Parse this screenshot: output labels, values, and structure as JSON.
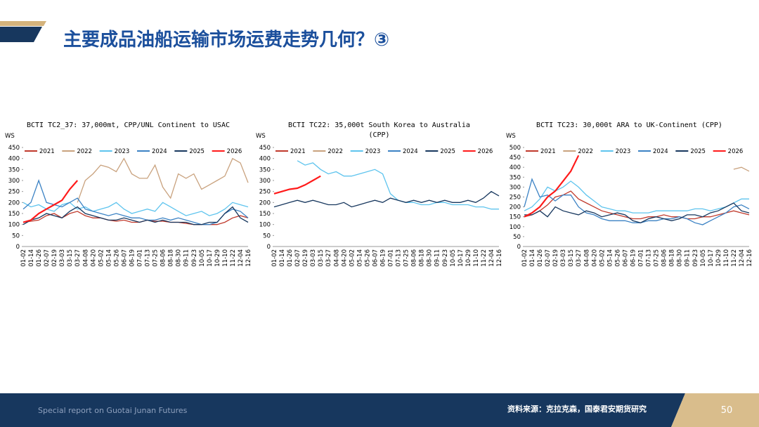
{
  "header": {
    "title": "主要成品油船运输市场运费走势几何？③"
  },
  "footer": {
    "left": "Special report on Guotai Junan Futures",
    "source": "资料来源：克拉克森，国泰君安期货研究",
    "page": 50
  },
  "chart_data": [
    {
      "type": "line",
      "title": "BCTI TC2_37: 37,000mt, CPP/UNL Continent to USAC",
      "ylabel": "WS",
      "legend": "top",
      "grid": false,
      "categories": [
        "01-02",
        "01-14",
        "01-26",
        "02-07",
        "02-19",
        "03-03",
        "03-15",
        "03-27",
        "04-08",
        "04-20",
        "05-02",
        "05-14",
        "05-26",
        "06-07",
        "06-19",
        "07-01",
        "07-13",
        "07-25",
        "08-06",
        "08-18",
        "08-30",
        "09-11",
        "09-23",
        "10-05",
        "10-17",
        "10-29",
        "11-10",
        "11-22",
        "12-04",
        "12-16"
      ],
      "ylim": [
        0,
        450
      ],
      "yticks": [
        0,
        50,
        100,
        150,
        200,
        250,
        300,
        350,
        400,
        450
      ],
      "series": [
        {
          "name": "2021",
          "color": "#c0392b",
          "values": [
            110,
            115,
            120,
            140,
            150,
            130,
            150,
            160,
            140,
            130,
            130,
            120,
            115,
            120,
            110,
            110,
            120,
            115,
            115,
            110,
            110,
            105,
            100,
            100,
            100,
            100,
            110,
            130,
            140,
            130
          ]
        },
        {
          "name": "2022",
          "color": "#c9a27e",
          "values": [
            null,
            null,
            null,
            null,
            null,
            null,
            null,
            200,
            300,
            330,
            370,
            360,
            340,
            400,
            330,
            310,
            310,
            370,
            270,
            220,
            330,
            310,
            330,
            260,
            280,
            300,
            320,
            400,
            380,
            290
          ]
        },
        {
          "name": "2023",
          "color": "#5ec4ee",
          "values": [
            200,
            180,
            190,
            170,
            160,
            190,
            200,
            170,
            180,
            160,
            170,
            180,
            200,
            170,
            150,
            160,
            170,
            160,
            200,
            180,
            160,
            140,
            150,
            160,
            140,
            150,
            170,
            200,
            190,
            180
          ]
        },
        {
          "name": "2024",
          "color": "#3b82c4",
          "values": [
            170,
            200,
            300,
            200,
            190,
            180,
            200,
            220,
            170,
            160,
            150,
            140,
            150,
            140,
            130,
            130,
            120,
            120,
            130,
            120,
            130,
            120,
            110,
            100,
            100,
            110,
            150,
            170,
            160,
            130
          ]
        },
        {
          "name": "2025",
          "color": "#17375e",
          "values": [
            100,
            120,
            130,
            150,
            140,
            130,
            160,
            180,
            150,
            140,
            130,
            120,
            120,
            130,
            120,
            110,
            120,
            110,
            120,
            110,
            110,
            110,
            100,
            100,
            110,
            110,
            150,
            180,
            130,
            110
          ]
        },
        {
          "name": "2026",
          "color": "#ff1a1a",
          "values": [
            110,
            120,
            150,
            170,
            190,
            210,
            260,
            300,
            null,
            null,
            null,
            null,
            null,
            null,
            null,
            null,
            null,
            null,
            null,
            null,
            null,
            null,
            null,
            null,
            null,
            null,
            null,
            null,
            null,
            null
          ]
        }
      ]
    },
    {
      "type": "line",
      "title": "BCTI TC22: 35,000t South Korea to Australia (CPP)",
      "ylabel": "WS",
      "legend": "top",
      "grid": false,
      "categories": [
        "01-02",
        "01-14",
        "01-26",
        "02-07",
        "02-19",
        "03-03",
        "03-15",
        "03-27",
        "04-08",
        "04-20",
        "05-02",
        "05-14",
        "05-26",
        "06-07",
        "06-19",
        "07-01",
        "07-13",
        "07-25",
        "08-06",
        "08-18",
        "08-30",
        "09-11",
        "09-23",
        "10-05",
        "10-17",
        "10-29",
        "11-10",
        "11-22",
        "12-04",
        "12-16"
      ],
      "ylim": [
        0,
        450
      ],
      "yticks": [
        0,
        50,
        100,
        150,
        200,
        250,
        300,
        350,
        400,
        450
      ],
      "series": [
        {
          "name": "2021",
          "color": "#c0392b",
          "values": [
            null,
            null,
            null,
            null,
            null,
            null,
            null,
            null,
            null,
            null,
            null,
            null,
            null,
            null,
            null,
            null,
            null,
            null,
            null,
            null,
            null,
            null,
            null,
            null,
            null,
            null,
            null,
            null,
            null,
            null
          ]
        },
        {
          "name": "2022",
          "color": "#c9a27e",
          "values": [
            null,
            null,
            null,
            null,
            null,
            null,
            null,
            null,
            null,
            null,
            null,
            null,
            null,
            null,
            null,
            null,
            null,
            null,
            null,
            null,
            null,
            null,
            null,
            null,
            null,
            null,
            null,
            null,
            null,
            null
          ]
        },
        {
          "name": "2023",
          "color": "#5ec4ee",
          "values": [
            null,
            null,
            null,
            390,
            370,
            380,
            350,
            330,
            340,
            320,
            320,
            330,
            340,
            350,
            330,
            240,
            210,
            200,
            200,
            190,
            190,
            200,
            200,
            190,
            190,
            190,
            180,
            180,
            170,
            170
          ]
        },
        {
          "name": "2024",
          "color": "#3b82c4",
          "values": [
            null,
            null,
            null,
            null,
            null,
            null,
            null,
            null,
            null,
            null,
            null,
            null,
            null,
            null,
            null,
            null,
            null,
            null,
            null,
            null,
            null,
            null,
            null,
            null,
            null,
            null,
            null,
            null,
            null,
            null
          ]
        },
        {
          "name": "2025",
          "color": "#17375e",
          "values": [
            180,
            190,
            200,
            210,
            200,
            210,
            200,
            190,
            190,
            200,
            180,
            190,
            200,
            210,
            200,
            220,
            210,
            200,
            210,
            200,
            210,
            200,
            210,
            200,
            200,
            210,
            200,
            220,
            250,
            230
          ]
        },
        {
          "name": "2026",
          "color": "#ff1a1a",
          "values": [
            240,
            250,
            260,
            265,
            280,
            300,
            320,
            null,
            null,
            null,
            null,
            null,
            null,
            null,
            null,
            null,
            null,
            null,
            null,
            null,
            null,
            null,
            null,
            null,
            null,
            null,
            null,
            null,
            null,
            null
          ]
        }
      ]
    },
    {
      "type": "line",
      "title": "BCTI TC23: 30,000t ARA to UK-Continent (CPP)",
      "ylabel": "WS",
      "legend": "top",
      "grid": false,
      "categories": [
        "01-02",
        "01-14",
        "01-26",
        "02-07",
        "02-19",
        "03-03",
        "03-15",
        "03-27",
        "04-08",
        "04-20",
        "05-02",
        "05-14",
        "05-26",
        "06-07",
        "06-19",
        "07-01",
        "07-13",
        "07-25",
        "08-06",
        "08-18",
        "08-30",
        "09-11",
        "09-23",
        "10-05",
        "10-17",
        "10-29",
        "11-10",
        "11-22",
        "12-04",
        "12-16"
      ],
      "ylim": [
        0,
        500
      ],
      "yticks": [
        0,
        50,
        100,
        150,
        200,
        250,
        300,
        350,
        400,
        450,
        500
      ],
      "series": [
        {
          "name": "2021",
          "color": "#c0392b",
          "values": [
            150,
            160,
            180,
            210,
            250,
            260,
            280,
            240,
            220,
            200,
            180,
            170,
            160,
            150,
            140,
            140,
            150,
            150,
            160,
            150,
            150,
            140,
            140,
            150,
            150,
            160,
            170,
            180,
            170,
            160
          ]
        },
        {
          "name": "2022",
          "color": "#c9a27e",
          "values": [
            null,
            null,
            null,
            null,
            null,
            null,
            null,
            null,
            null,
            null,
            null,
            null,
            null,
            null,
            null,
            null,
            null,
            null,
            null,
            null,
            null,
            null,
            null,
            null,
            null,
            null,
            null,
            390,
            400,
            380
          ]
        },
        {
          "name": "2023",
          "color": "#5ec4ee",
          "values": [
            180,
            200,
            240,
            300,
            280,
            300,
            330,
            300,
            260,
            230,
            200,
            190,
            180,
            180,
            170,
            170,
            170,
            180,
            180,
            180,
            180,
            180,
            190,
            190,
            180,
            190,
            200,
            220,
            240,
            240
          ]
        },
        {
          "name": "2024",
          "color": "#3b82c4",
          "values": [
            200,
            340,
            250,
            260,
            230,
            260,
            260,
            200,
            170,
            160,
            140,
            130,
            130,
            130,
            120,
            120,
            130,
            130,
            140,
            140,
            150,
            140,
            120,
            110,
            130,
            150,
            170,
            200,
            210,
            190
          ]
        },
        {
          "name": "2025",
          "color": "#17375e",
          "values": [
            160,
            160,
            180,
            150,
            200,
            180,
            170,
            160,
            180,
            170,
            150,
            160,
            170,
            160,
            130,
            120,
            140,
            150,
            140,
            130,
            140,
            160,
            160,
            150,
            170,
            180,
            200,
            220,
            180,
            170
          ]
        },
        {
          "name": "2026",
          "color": "#ff1a1a",
          "values": [
            150,
            170,
            200,
            250,
            280,
            330,
            380,
            460,
            null,
            null,
            null,
            null,
            null,
            null,
            null,
            null,
            null,
            null,
            null,
            null,
            null,
            null,
            null,
            null,
            null,
            null,
            null,
            null,
            null,
            null
          ]
        }
      ]
    }
  ]
}
